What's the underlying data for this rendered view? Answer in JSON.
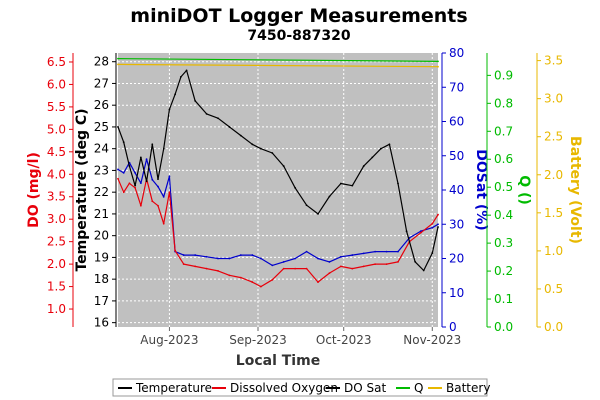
{
  "chart_data": {
    "type": "line",
    "title": "miniDOT Logger Measurements",
    "subtitle": "7450-887320",
    "xlabel": "Local Time",
    "x_ticks": [
      "Aug-2023",
      "Sep-2023",
      "Oct-2023",
      "Nov-2023"
    ],
    "x_range": [
      "2023-07-14",
      "2023-11-03"
    ],
    "grid": true,
    "legend_position": "bottom",
    "axes": [
      {
        "id": "do",
        "label": "DO (mg/l)",
        "color": "#e8000b",
        "side": "left",
        "range": [
          0.6,
          6.7
        ],
        "ticks": [
          1.0,
          1.5,
          2.0,
          2.5,
          3.0,
          3.5,
          4.0,
          4.5,
          5.0,
          5.5,
          6.0,
          6.5
        ]
      },
      {
        "id": "temp",
        "label": "Temperature (deg C)",
        "color": "#000000",
        "side": "left",
        "range": [
          15.8,
          28.4
        ],
        "ticks": [
          16,
          17,
          18,
          19,
          20,
          21,
          22,
          23,
          24,
          25,
          26,
          27,
          28
        ]
      },
      {
        "id": "dosat",
        "label": "DOSat (%)",
        "color": "#0000cc",
        "side": "right",
        "range": [
          0,
          80
        ],
        "ticks": [
          0,
          10,
          20,
          30,
          40,
          50,
          60,
          70,
          80
        ]
      },
      {
        "id": "q",
        "label": "Q ()",
        "color": "#00bb00",
        "side": "right",
        "range": [
          0,
          0.98
        ],
        "ticks": [
          0.0,
          0.1,
          0.2,
          0.3,
          0.4,
          0.5,
          0.6,
          0.7,
          0.8,
          0.9
        ]
      },
      {
        "id": "battery",
        "label": "Battery (Volt)",
        "color": "#e8b800",
        "side": "right",
        "range": [
          0,
          3.6
        ],
        "ticks": [
          0.0,
          0.5,
          1.0,
          1.5,
          2.0,
          2.5,
          3.0,
          3.5
        ]
      }
    ],
    "series": [
      {
        "name": "Temperature",
        "axis": "temp",
        "color": "#000000",
        "x": [
          "2023-07-14",
          "2023-07-16",
          "2023-07-18",
          "2023-07-20",
          "2023-07-22",
          "2023-07-24",
          "2023-07-26",
          "2023-07-28",
          "2023-07-30",
          "2023-08-01",
          "2023-08-03",
          "2023-08-05",
          "2023-08-07",
          "2023-08-10",
          "2023-08-14",
          "2023-08-18",
          "2023-08-22",
          "2023-08-26",
          "2023-08-30",
          "2023-09-02",
          "2023-09-06",
          "2023-09-10",
          "2023-09-14",
          "2023-09-18",
          "2023-09-22",
          "2023-09-26",
          "2023-09-30",
          "2023-10-04",
          "2023-10-08",
          "2023-10-11",
          "2023-10-14",
          "2023-10-17",
          "2023-10-20",
          "2023-10-23",
          "2023-10-26",
          "2023-10-29",
          "2023-11-01",
          "2023-11-03"
        ],
        "values": [
          25.0,
          24.3,
          23.2,
          22.3,
          23.6,
          22.5,
          24.2,
          22.6,
          24.0,
          25.8,
          26.5,
          27.3,
          27.6,
          26.2,
          25.6,
          25.4,
          25.0,
          24.6,
          24.2,
          24.0,
          23.8,
          23.2,
          22.2,
          21.4,
          21.0,
          21.8,
          22.4,
          22.3,
          23.2,
          23.6,
          24.0,
          24.2,
          22.4,
          20.2,
          18.8,
          18.4,
          19.2,
          20.4
        ]
      },
      {
        "name": "Dissolved Oxygen",
        "axis": "do",
        "color": "#e8000b",
        "x": [
          "2023-07-14",
          "2023-07-16",
          "2023-07-18",
          "2023-07-20",
          "2023-07-22",
          "2023-07-24",
          "2023-07-26",
          "2023-07-28",
          "2023-07-30",
          "2023-08-01",
          "2023-08-03",
          "2023-08-06",
          "2023-08-10",
          "2023-08-14",
          "2023-08-18",
          "2023-08-22",
          "2023-08-26",
          "2023-08-30",
          "2023-09-02",
          "2023-09-06",
          "2023-09-10",
          "2023-09-14",
          "2023-09-18",
          "2023-09-22",
          "2023-09-26",
          "2023-09-30",
          "2023-10-04",
          "2023-10-08",
          "2023-10-12",
          "2023-10-16",
          "2023-10-20",
          "2023-10-24",
          "2023-10-28",
          "2023-11-01",
          "2023-11-03"
        ],
        "values": [
          3.9,
          3.6,
          3.8,
          3.7,
          3.3,
          3.9,
          3.4,
          3.3,
          2.9,
          3.6,
          2.3,
          2.0,
          1.95,
          1.9,
          1.85,
          1.75,
          1.7,
          1.6,
          1.5,
          1.65,
          1.9,
          1.9,
          1.9,
          1.6,
          1.8,
          1.95,
          1.9,
          1.95,
          2.0,
          2.0,
          2.05,
          2.5,
          2.7,
          2.9,
          3.1
        ]
      },
      {
        "name": "DO Sat",
        "axis": "dosat",
        "color": "#0000cc",
        "x": [
          "2023-07-14",
          "2023-07-16",
          "2023-07-18",
          "2023-07-20",
          "2023-07-22",
          "2023-07-24",
          "2023-07-26",
          "2023-07-28",
          "2023-07-30",
          "2023-08-01",
          "2023-08-03",
          "2023-08-06",
          "2023-08-10",
          "2023-08-14",
          "2023-08-18",
          "2023-08-22",
          "2023-08-26",
          "2023-08-30",
          "2023-09-02",
          "2023-09-06",
          "2023-09-10",
          "2023-09-14",
          "2023-09-18",
          "2023-09-22",
          "2023-09-26",
          "2023-09-30",
          "2023-10-04",
          "2023-10-08",
          "2023-10-12",
          "2023-10-16",
          "2023-10-20",
          "2023-10-24",
          "2023-10-28",
          "2023-11-01",
          "2023-11-03"
        ],
        "values": [
          46,
          45,
          48,
          45,
          42,
          49,
          43,
          41,
          38,
          44,
          22,
          21,
          21,
          20.5,
          20,
          20,
          21,
          21,
          20,
          18,
          19,
          20,
          22,
          20,
          19,
          20.5,
          21,
          21.5,
          22,
          22,
          22,
          26,
          28,
          29,
          30
        ]
      },
      {
        "name": "Q",
        "axis": "q",
        "color": "#00bb00",
        "x": [
          "2023-07-14",
          "2023-11-03"
        ],
        "values": [
          0.96,
          0.95
        ]
      },
      {
        "name": "Battery",
        "axis": "battery",
        "color": "#e8b800",
        "x": [
          "2023-07-14",
          "2023-11-03"
        ],
        "values": [
          3.45,
          3.42
        ]
      }
    ]
  }
}
